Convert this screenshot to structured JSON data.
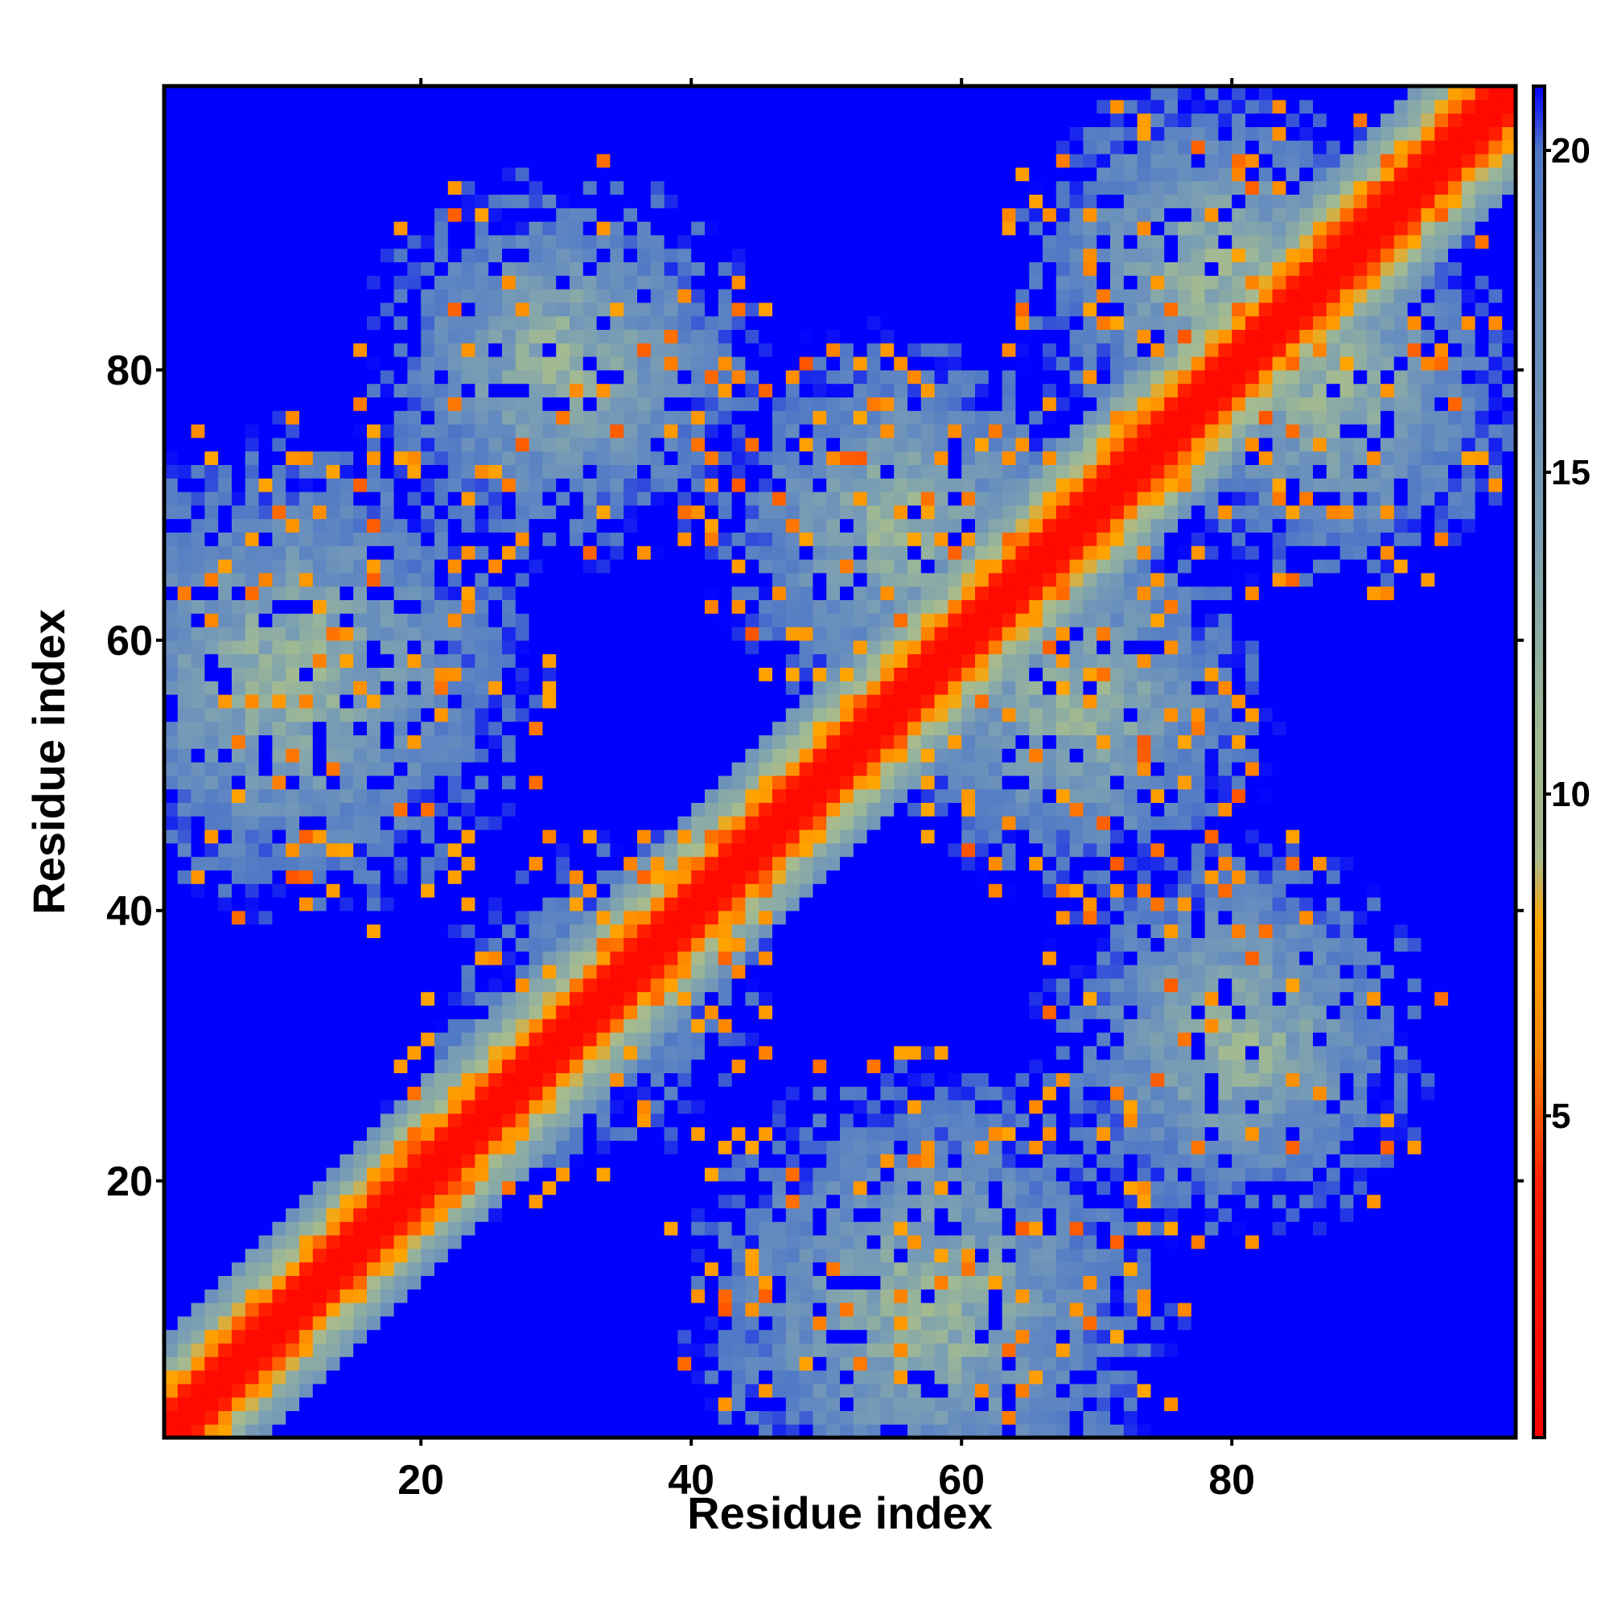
{
  "chart_data": {
    "type": "heatmap",
    "title": "",
    "xlabel": "Residue index",
    "ylabel": "Residue index",
    "xlim": [
      1,
      101
    ],
    "ylim": [
      1,
      101
    ],
    "xticks": [
      20,
      40,
      60,
      80
    ],
    "yticks": [
      20,
      40,
      60,
      80
    ],
    "n_residues": 100,
    "grid": false,
    "colorbar": {
      "position": "right",
      "range": [
        0,
        21
      ],
      "ticks": [
        5,
        10,
        15,
        20
      ],
      "stops": [
        {
          "value": 0,
          "color": "#ff0000"
        },
        {
          "value": 4,
          "color": "#ff2200"
        },
        {
          "value": 6,
          "color": "#ff8800"
        },
        {
          "value": 8,
          "color": "#ffa500"
        },
        {
          "value": 9,
          "color": "#a9ba8c"
        },
        {
          "value": 11,
          "color": "#9fb994"
        },
        {
          "value": 14,
          "color": "#7b9fb3"
        },
        {
          "value": 18,
          "color": "#5f86c2"
        },
        {
          "value": 20,
          "color": "#4f78c6"
        },
        {
          "value": 21,
          "color": "#0000ff"
        }
      ]
    },
    "description_of_values": "symmetric pairwise residue distance map; ~0-4 on diagonal (red), 5-8 near-diagonal/contacts (orange), 9-19 mid range (sage to steel blue), >=21 far (blue)",
    "bands": [
      {
        "center_x": 57,
        "center_y": 10,
        "spread": 20
      },
      {
        "center_x": 18,
        "center_y": 67,
        "spread": 14
      },
      {
        "center_x": 25,
        "center_y": 38,
        "spread": 22
      },
      {
        "center_x": 80,
        "center_y": 30,
        "spread": 16
      },
      {
        "center_x": 87,
        "center_y": 78,
        "spread": 16
      },
      {
        "center_x": 45,
        "center_y": 80,
        "spread": 20
      },
      {
        "center_x": 68,
        "center_y": 55,
        "spread": 16
      }
    ]
  }
}
